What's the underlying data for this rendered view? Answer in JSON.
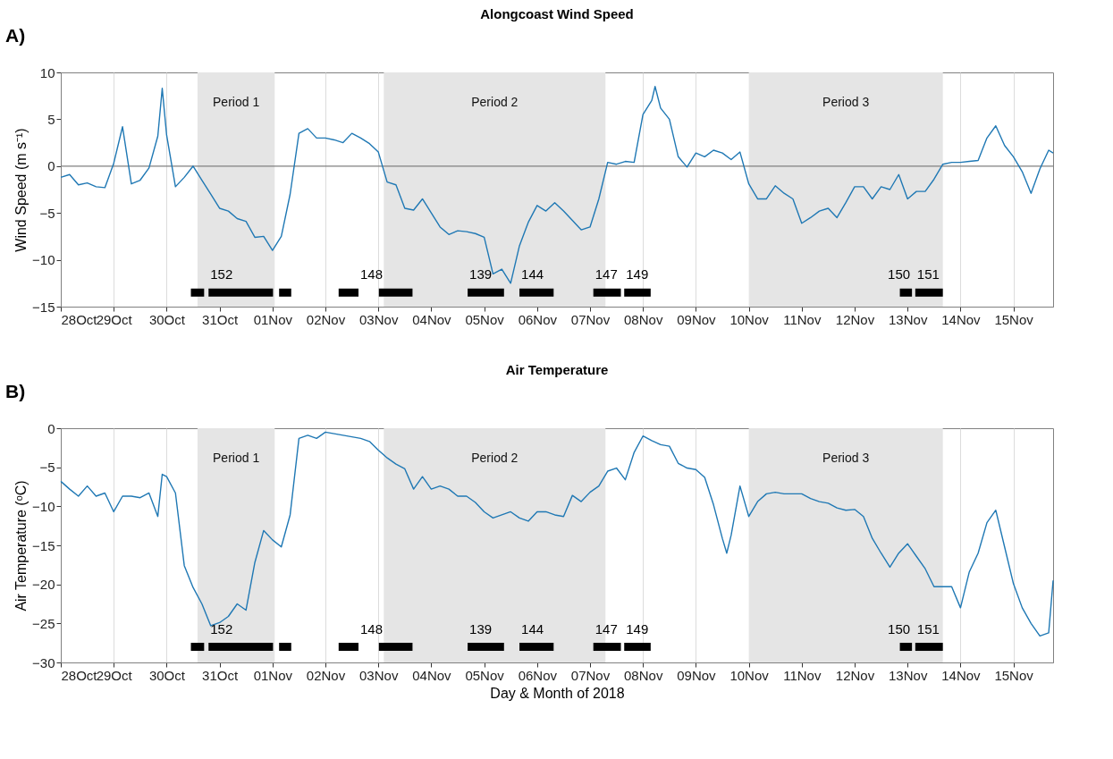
{
  "chart_data": [
    {
      "type": "line",
      "title": "Alongcoast Wind Speed",
      "ylabel": "Wind Speed (m s⁻¹)",
      "annotations": [
        "A)",
        {
          "text": "152",
          "x": "2018-10-30T19:00",
          "y": -13.5
        },
        {
          "text": "148",
          "x": "2018-11-02T15:00",
          "y": -13.5
        },
        {
          "text": "139",
          "x": "2018-11-04T16:30",
          "y": -13.5
        },
        {
          "text": "144",
          "x": "2018-11-05T16:00",
          "y": -13.5
        },
        {
          "text": "147",
          "x": "2018-11-07T01:30",
          "y": -13.5
        },
        {
          "text": "149",
          "x": "2018-11-07T15:30",
          "y": -13.5
        },
        {
          "text": "150",
          "x": "2018-11-13T02:00",
          "y": -13.5
        },
        {
          "text": "151",
          "x": "2018-11-13T03:30",
          "y": -13.5
        }
      ],
      "xlim": [
        "2018-10-28",
        "2018-11-15T18:00"
      ],
      "xticks": [
        {
          "value": "2018-10-28",
          "label": "28Oct"
        },
        {
          "value": "2018-10-29",
          "label": "29Oct"
        },
        {
          "value": "2018-10-30",
          "label": "30Oct"
        },
        {
          "value": "2018-10-31",
          "label": "31Oct"
        },
        {
          "value": "2018-11-01",
          "label": "01Nov"
        },
        {
          "value": "2018-11-02",
          "label": "02Nov"
        },
        {
          "value": "2018-11-03",
          "label": "03Nov"
        },
        {
          "value": "2018-11-04",
          "label": "04Nov"
        },
        {
          "value": "2018-11-05",
          "label": "05Nov"
        },
        {
          "value": "2018-11-06",
          "label": "06Nov"
        },
        {
          "value": "2018-11-07",
          "label": "07Nov"
        },
        {
          "value": "2018-11-08",
          "label": "08Nov"
        },
        {
          "value": "2018-11-09",
          "label": "09Nov"
        },
        {
          "value": "2018-11-10",
          "label": "10Nov"
        },
        {
          "value": "2018-11-11",
          "label": "11Nov"
        },
        {
          "value": "2018-11-12",
          "label": "12Nov"
        },
        {
          "value": "2018-11-13",
          "label": "13Nov"
        },
        {
          "value": "2018-11-14",
          "label": "14Nov"
        },
        {
          "value": "2018-11-15",
          "label": "15Nov"
        }
      ],
      "ylim": [
        -15,
        10
      ],
      "yticks": [
        -15,
        -10,
        -5,
        0,
        5,
        10
      ],
      "grid": "x",
      "bands": [
        {
          "axis": "x",
          "from": "2018-10-30T14:00",
          "to": "2018-11-01T01:00",
          "label": "Period 1",
          "color": "#e5e5e5"
        },
        {
          "axis": "x",
          "from": "2018-11-03T02:30",
          "to": "2018-11-07T07:00",
          "label": "Period 2",
          "color": "#e5e5e5"
        },
        {
          "axis": "x",
          "from": "2018-11-10T00:00",
          "to": "2018-11-13T16:00",
          "label": "Period 3",
          "color": "#e5e5e5"
        }
      ],
      "ref_lines": [
        {
          "axis": "y",
          "value": 0,
          "color": "#808080"
        }
      ],
      "series": [
        {
          "color": "#1f78b4",
          "x": [
            "2018-10-28T00:00",
            "2018-10-28T04:00",
            "2018-10-28T08:00",
            "2018-10-28T12:00",
            "2018-10-28T16:00",
            "2018-10-28T20:00",
            "2018-10-29T00:00",
            "2018-10-29T04:00",
            "2018-10-29T08:00",
            "2018-10-29T12:00",
            "2018-10-29T16:00",
            "2018-10-29T20:00",
            "2018-10-29T22:00",
            "2018-10-30T00:00",
            "2018-10-30T04:00",
            "2018-10-30T08:00",
            "2018-10-30T12:00",
            "2018-10-30T16:00",
            "2018-10-30T20:00",
            "2018-10-31T00:00",
            "2018-10-31T04:00",
            "2018-10-31T08:00",
            "2018-10-31T12:00",
            "2018-10-31T16:00",
            "2018-10-31T20:00",
            "2018-11-01T00:00",
            "2018-11-01T04:00",
            "2018-11-01T08:00",
            "2018-11-01T12:00",
            "2018-11-01T16:00",
            "2018-11-01T20:00",
            "2018-11-02T00:00",
            "2018-11-02T04:00",
            "2018-11-02T08:00",
            "2018-11-02T12:00",
            "2018-11-02T16:00",
            "2018-11-02T20:00",
            "2018-11-03T00:00",
            "2018-11-03T04:00",
            "2018-11-03T08:00",
            "2018-11-03T12:00",
            "2018-11-03T16:00",
            "2018-11-03T20:00",
            "2018-11-04T00:00",
            "2018-11-04T04:00",
            "2018-11-04T08:00",
            "2018-11-04T12:00",
            "2018-11-04T16:00",
            "2018-11-04T20:00",
            "2018-11-05T00:00",
            "2018-11-05T04:00",
            "2018-11-05T08:00",
            "2018-11-05T12:00",
            "2018-11-05T16:00",
            "2018-11-05T20:00",
            "2018-11-06T00:00",
            "2018-11-06T04:00",
            "2018-11-06T08:00",
            "2018-11-06T12:00",
            "2018-11-06T16:00",
            "2018-11-06T20:00",
            "2018-11-07T00:00",
            "2018-11-07T04:00",
            "2018-11-07T08:00",
            "2018-11-07T12:00",
            "2018-11-07T16:00",
            "2018-11-07T20:00",
            "2018-11-08T00:00",
            "2018-11-08T04:00",
            "2018-11-08T05:30",
            "2018-11-08T08:00",
            "2018-11-08T12:00",
            "2018-11-08T16:00",
            "2018-11-08T20:00",
            "2018-11-09T00:00",
            "2018-11-09T04:00",
            "2018-11-09T08:00",
            "2018-11-09T12:00",
            "2018-11-09T16:00",
            "2018-11-09T20:00",
            "2018-11-10T00:00",
            "2018-11-10T04:00",
            "2018-11-10T08:00",
            "2018-11-10T12:00",
            "2018-11-10T16:00",
            "2018-11-10T20:00",
            "2018-11-11T00:00",
            "2018-11-11T04:00",
            "2018-11-11T08:00",
            "2018-11-11T12:00",
            "2018-11-11T16:00",
            "2018-11-11T20:00",
            "2018-11-12T00:00",
            "2018-11-12T04:00",
            "2018-11-12T08:00",
            "2018-11-12T12:00",
            "2018-11-12T16:00",
            "2018-11-12T20:00",
            "2018-11-13T00:00",
            "2018-11-13T04:00",
            "2018-11-13T08:00",
            "2018-11-13T12:00",
            "2018-11-13T16:00",
            "2018-11-13T20:00",
            "2018-11-14T00:00",
            "2018-11-14T04:00",
            "2018-11-14T08:00",
            "2018-11-14T12:00",
            "2018-11-14T16:00",
            "2018-11-14T20:00",
            "2018-11-15T00:00",
            "2018-11-15T04:00",
            "2018-11-15T08:00",
            "2018-11-15T12:00",
            "2018-11-15T16:00",
            "2018-11-15T18:00"
          ],
          "values": [
            -1.2,
            -0.9,
            -2.0,
            -1.8,
            -2.2,
            -2.3,
            0.3,
            4.2,
            -1.9,
            -1.5,
            -0.2,
            3.2,
            8.3,
            3.3,
            -2.2,
            -1.2,
            0.0,
            -1.5,
            -3.0,
            -4.5,
            -4.8,
            -5.6,
            -5.9,
            -7.6,
            -7.5,
            -9.0,
            -7.5,
            -3.0,
            3.5,
            4.0,
            3.0,
            3.0,
            2.8,
            2.5,
            3.5,
            3.0,
            2.4,
            1.5,
            -1.7,
            -2.0,
            -4.5,
            -4.7,
            -3.5,
            -5.0,
            -6.5,
            -7.3,
            -6.9,
            -7.0,
            -7.2,
            -7.6,
            -11.5,
            -11.0,
            -12.5,
            -8.5,
            -6.0,
            -4.2,
            -4.8,
            -3.9,
            -4.8,
            -5.8,
            -6.8,
            -6.5,
            -3.5,
            0.4,
            0.2,
            0.5,
            0.4,
            5.5,
            7.0,
            8.5,
            6.2,
            5.0,
            1.0,
            -0.1,
            1.4,
            1.0,
            1.7,
            1.4,
            0.7,
            1.5,
            -1.9,
            -3.5,
            -3.5,
            -2.1,
            -2.9,
            -3.5,
            -6.1,
            -5.5,
            -4.8,
            -4.5,
            -5.5,
            -3.9,
            -2.2,
            -2.2,
            -3.5,
            -2.2,
            -2.5,
            -0.9,
            -3.5,
            -2.7,
            -2.7,
            -1.4,
            0.2,
            0.4,
            0.4,
            0.5,
            0.6,
            3.0,
            4.3,
            2.2,
            1.0,
            -0.6,
            -2.9,
            -0.3,
            1.7,
            1.4
          ]
        },
        {
          "color": "#000000",
          "x": [
            "2018-10-30T11:00",
            "2018-10-30T17:00",
            "2018-10-30T19:00",
            "2018-11-01T00:15",
            "2018-11-01T03:00",
            "2018-11-01T08:30",
            "2018-11-02T06:00",
            "2018-11-02T15:00",
            "2018-11-03T00:15",
            "2018-11-03T15:30",
            "2018-11-04T16:30",
            "2018-11-05T09:00",
            "2018-11-05T16:00",
            "2018-11-06T07:30",
            "2018-11-07T01:30",
            "2018-11-07T14:00",
            "2018-11-07T15:30",
            "2018-11-08T03:30",
            "2018-11-12T20:30",
            "2018-11-13T02:00",
            "2018-11-13T03:30",
            "2018-11-13T16:00"
          ],
          "values": [
            -13.5,
            -13.5,
            -13.5,
            -13.5,
            -13.5,
            -13.5,
            -13.5,
            -13.5,
            -13.5,
            -13.5,
            -13.5,
            -13.5,
            -13.5,
            -13.5,
            -13.5,
            -13.5,
            -13.5,
            -13.5,
            -13.5,
            -13.5,
            -13.5,
            -13.5
          ]
        }
      ]
    },
    {
      "type": "line",
      "title": "Air Temperature",
      "xlabel": "Day & Month of 2018",
      "ylabel": "Air Temperature (ᵒC)",
      "annotations": [
        "B)",
        {
          "text": "152",
          "x": "2018-10-30T19:00",
          "y": -28
        },
        {
          "text": "148",
          "x": "2018-11-02T15:00",
          "y": -28
        },
        {
          "text": "139",
          "x": "2018-11-04T16:30",
          "y": -28
        },
        {
          "text": "144",
          "x": "2018-11-05T16:00",
          "y": -28
        },
        {
          "text": "147",
          "x": "2018-11-07T01:30",
          "y": -28
        },
        {
          "text": "149",
          "x": "2018-11-07T15:30",
          "y": -28
        },
        {
          "text": "150",
          "x": "2018-11-13T02:00",
          "y": -28
        },
        {
          "text": "151",
          "x": "2018-11-13T03:30",
          "y": -28
        }
      ],
      "xlim": [
        "2018-10-28",
        "2018-11-15T18:00"
      ],
      "xticks": [
        {
          "value": "2018-10-28",
          "label": "28Oct"
        },
        {
          "value": "2018-10-29",
          "label": "29Oct"
        },
        {
          "value": "2018-10-30",
          "label": "30Oct"
        },
        {
          "value": "2018-10-31",
          "label": "31Oct"
        },
        {
          "value": "2018-11-01",
          "label": "01Nov"
        },
        {
          "value": "2018-11-02",
          "label": "02Nov"
        },
        {
          "value": "2018-11-03",
          "label": "03Nov"
        },
        {
          "value": "2018-11-04",
          "label": "04Nov"
        },
        {
          "value": "2018-11-05",
          "label": "05Nov"
        },
        {
          "value": "2018-11-06",
          "label": "06Nov"
        },
        {
          "value": "2018-11-07",
          "label": "07Nov"
        },
        {
          "value": "2018-11-08",
          "label": "08Nov"
        },
        {
          "value": "2018-11-09",
          "label": "09Nov"
        },
        {
          "value": "2018-11-10",
          "label": "10Nov"
        },
        {
          "value": "2018-11-11",
          "label": "11Nov"
        },
        {
          "value": "2018-11-12",
          "label": "12Nov"
        },
        {
          "value": "2018-11-13",
          "label": "13Nov"
        },
        {
          "value": "2018-11-14",
          "label": "14Nov"
        },
        {
          "value": "2018-11-15",
          "label": "15Nov"
        }
      ],
      "ylim": [
        -30,
        0
      ],
      "yticks": [
        -30,
        -25,
        -20,
        -15,
        -10,
        -5,
        0
      ],
      "grid": "x",
      "bands": [
        {
          "axis": "x",
          "from": "2018-10-30T14:00",
          "to": "2018-11-01T01:00",
          "label": "Period 1",
          "color": "#e5e5e5"
        },
        {
          "axis": "x",
          "from": "2018-11-03T02:30",
          "to": "2018-11-07T07:00",
          "label": "Period 2",
          "color": "#e5e5e5"
        },
        {
          "axis": "x",
          "from": "2018-11-10T00:00",
          "to": "2018-11-13T16:00",
          "label": "Period 3",
          "color": "#e5e5e5"
        }
      ],
      "series": [
        {
          "color": "#1f78b4",
          "x": [
            "2018-10-28T00:00",
            "2018-10-28T04:00",
            "2018-10-28T08:00",
            "2018-10-28T12:00",
            "2018-10-28T16:00",
            "2018-10-28T20:00",
            "2018-10-29T00:00",
            "2018-10-29T04:00",
            "2018-10-29T08:00",
            "2018-10-29T12:00",
            "2018-10-29T16:00",
            "2018-10-29T20:00",
            "2018-10-29T22:00",
            "2018-10-30T00:00",
            "2018-10-30T04:00",
            "2018-10-30T08:00",
            "2018-10-30T12:00",
            "2018-10-30T16:00",
            "2018-10-30T20:00",
            "2018-10-31T00:00",
            "2018-10-31T04:00",
            "2018-10-31T08:00",
            "2018-10-31T12:00",
            "2018-10-31T16:00",
            "2018-10-31T20:00",
            "2018-11-01T00:00",
            "2018-11-01T04:00",
            "2018-11-01T08:00",
            "2018-11-01T12:00",
            "2018-11-01T16:00",
            "2018-11-01T20:00",
            "2018-11-02T00:00",
            "2018-11-02T04:00",
            "2018-11-02T08:00",
            "2018-11-02T12:00",
            "2018-11-02T16:00",
            "2018-11-02T20:00",
            "2018-11-03T00:00",
            "2018-11-03T04:00",
            "2018-11-03T08:00",
            "2018-11-03T12:00",
            "2018-11-03T16:00",
            "2018-11-03T20:00",
            "2018-11-04T00:00",
            "2018-11-04T04:00",
            "2018-11-04T08:00",
            "2018-11-04T12:00",
            "2018-11-04T16:00",
            "2018-11-04T20:00",
            "2018-11-05T00:00",
            "2018-11-05T04:00",
            "2018-11-05T08:00",
            "2018-11-05T12:00",
            "2018-11-05T16:00",
            "2018-11-05T20:00",
            "2018-11-06T00:00",
            "2018-11-06T04:00",
            "2018-11-06T08:00",
            "2018-11-06T12:00",
            "2018-11-06T16:00",
            "2018-11-06T20:00",
            "2018-11-07T00:00",
            "2018-11-07T04:00",
            "2018-11-07T08:00",
            "2018-11-07T12:00",
            "2018-11-07T16:00",
            "2018-11-07T20:00",
            "2018-11-08T00:00",
            "2018-11-08T04:00",
            "2018-11-08T08:00",
            "2018-11-08T12:00",
            "2018-11-08T16:00",
            "2018-11-08T20:00",
            "2018-11-09T00:00",
            "2018-11-09T04:00",
            "2018-11-09T08:00",
            "2018-11-09T12:00",
            "2018-11-09T14:00",
            "2018-11-09T16:00",
            "2018-11-09T20:00",
            "2018-11-10T00:00",
            "2018-11-10T04:00",
            "2018-11-10T08:00",
            "2018-11-10T12:00",
            "2018-11-10T16:00",
            "2018-11-10T20:00",
            "2018-11-11T00:00",
            "2018-11-11T04:00",
            "2018-11-11T08:00",
            "2018-11-11T12:00",
            "2018-11-11T16:00",
            "2018-11-11T20:00",
            "2018-11-12T00:00",
            "2018-11-12T04:00",
            "2018-11-12T08:00",
            "2018-11-12T12:00",
            "2018-11-12T16:00",
            "2018-11-12T20:00",
            "2018-11-13T00:00",
            "2018-11-13T04:00",
            "2018-11-13T08:00",
            "2018-11-13T12:00",
            "2018-11-13T16:00",
            "2018-11-13T20:00",
            "2018-11-14T00:00",
            "2018-11-14T04:00",
            "2018-11-14T08:00",
            "2018-11-14T12:00",
            "2018-11-14T16:00",
            "2018-11-14T20:00",
            "2018-11-15T00:00",
            "2018-11-15T04:00",
            "2018-11-15T08:00",
            "2018-11-15T12:00",
            "2018-11-15T16:00",
            "2018-11-15T18:00"
          ],
          "values": [
            -6.8,
            -7.8,
            -8.7,
            -7.4,
            -8.7,
            -8.3,
            -10.7,
            -8.7,
            -8.7,
            -8.9,
            -8.3,
            -11.3,
            -5.9,
            -6.2,
            -8.3,
            -17.6,
            -20.4,
            -22.5,
            -25.3,
            -24.9,
            -24.1,
            -22.5,
            -23.3,
            -17.2,
            -13.1,
            -14.3,
            -15.2,
            -11.1,
            -1.3,
            -0.9,
            -1.3,
            -0.5,
            -0.7,
            -0.9,
            -1.1,
            -1.3,
            -1.7,
            -2.8,
            -3.8,
            -4.6,
            -5.2,
            -7.8,
            -6.2,
            -7.8,
            -7.4,
            -7.8,
            -8.7,
            -8.7,
            -9.5,
            -10.7,
            -11.5,
            -11.1,
            -10.7,
            -11.5,
            -11.9,
            -10.7,
            -10.7,
            -11.1,
            -11.3,
            -8.6,
            -9.4,
            -8.2,
            -7.4,
            -5.5,
            -5.1,
            -6.6,
            -3.1,
            -1.0,
            -1.6,
            -2.1,
            -2.3,
            -4.5,
            -5.1,
            -5.3,
            -6.3,
            -9.8,
            -14.1,
            -16.0,
            -13.7,
            -7.4,
            -11.3,
            -9.4,
            -8.4,
            -8.2,
            -8.4,
            -8.4,
            -8.4,
            -9.0,
            -9.4,
            -9.6,
            -10.2,
            -10.5,
            -10.4,
            -11.3,
            -14.1,
            -16.0,
            -17.8,
            -16.0,
            -14.8,
            -16.4,
            -18.0,
            -20.3,
            -20.3,
            -20.3,
            -23.0,
            -18.4,
            -16.0,
            -12.1,
            -10.5,
            -15.2,
            -19.9,
            -23.0,
            -25.0,
            -26.6,
            -26.2,
            -19.5
          ]
        },
        {
          "color": "#000000",
          "x": [
            "2018-10-30T11:00",
            "2018-10-30T17:00",
            "2018-10-30T19:00",
            "2018-11-01T00:15",
            "2018-11-01T03:00",
            "2018-11-01T08:30",
            "2018-11-02T06:00",
            "2018-11-02T15:00",
            "2018-11-03T00:15",
            "2018-11-03T15:30",
            "2018-11-04T16:30",
            "2018-11-05T09:00",
            "2018-11-05T16:00",
            "2018-11-06T07:30",
            "2018-11-07T01:30",
            "2018-11-07T14:00",
            "2018-11-07T15:30",
            "2018-11-08T03:30",
            "2018-11-12T20:30",
            "2018-11-13T02:00",
            "2018-11-13T03:30",
            "2018-11-13T16:00"
          ],
          "values": [
            -28,
            -28,
            -28,
            -28,
            -28,
            -28,
            -28,
            -28,
            -28,
            -28,
            -28,
            -28,
            -28,
            -28,
            -28,
            -28,
            -28,
            -28,
            -28,
            -28,
            -28,
            -28
          ]
        }
      ]
    }
  ]
}
